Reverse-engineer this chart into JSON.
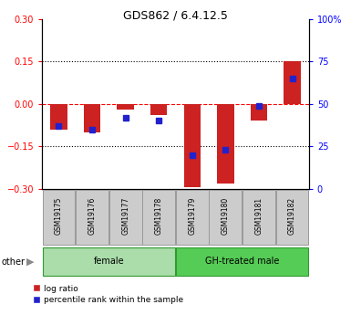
{
  "title": "GDS862 / 6.4.12.5",
  "samples": [
    "GSM19175",
    "GSM19176",
    "GSM19177",
    "GSM19178",
    "GSM19179",
    "GSM19180",
    "GSM19181",
    "GSM19182"
  ],
  "log_ratios": [
    -0.09,
    -0.1,
    -0.02,
    -0.04,
    -0.295,
    -0.28,
    -0.06,
    0.15
  ],
  "percentile_ranks_pct": [
    37,
    35,
    42,
    40,
    20,
    23,
    49,
    65
  ],
  "groups": [
    {
      "label": "female",
      "start": 0,
      "end": 4,
      "color": "#aaddaa"
    },
    {
      "label": "GH-treated male",
      "start": 4,
      "end": 8,
      "color": "#55cc55"
    }
  ],
  "ylim": [
    -0.3,
    0.3
  ],
  "yticks_left": [
    -0.3,
    -0.15,
    0,
    0.15,
    0.3
  ],
  "yticks_right": [
    0,
    25,
    50,
    75,
    100
  ],
  "bar_color": "#cc2222",
  "dot_color": "#2222cc",
  "bar_width": 0.5,
  "other_label": "other"
}
